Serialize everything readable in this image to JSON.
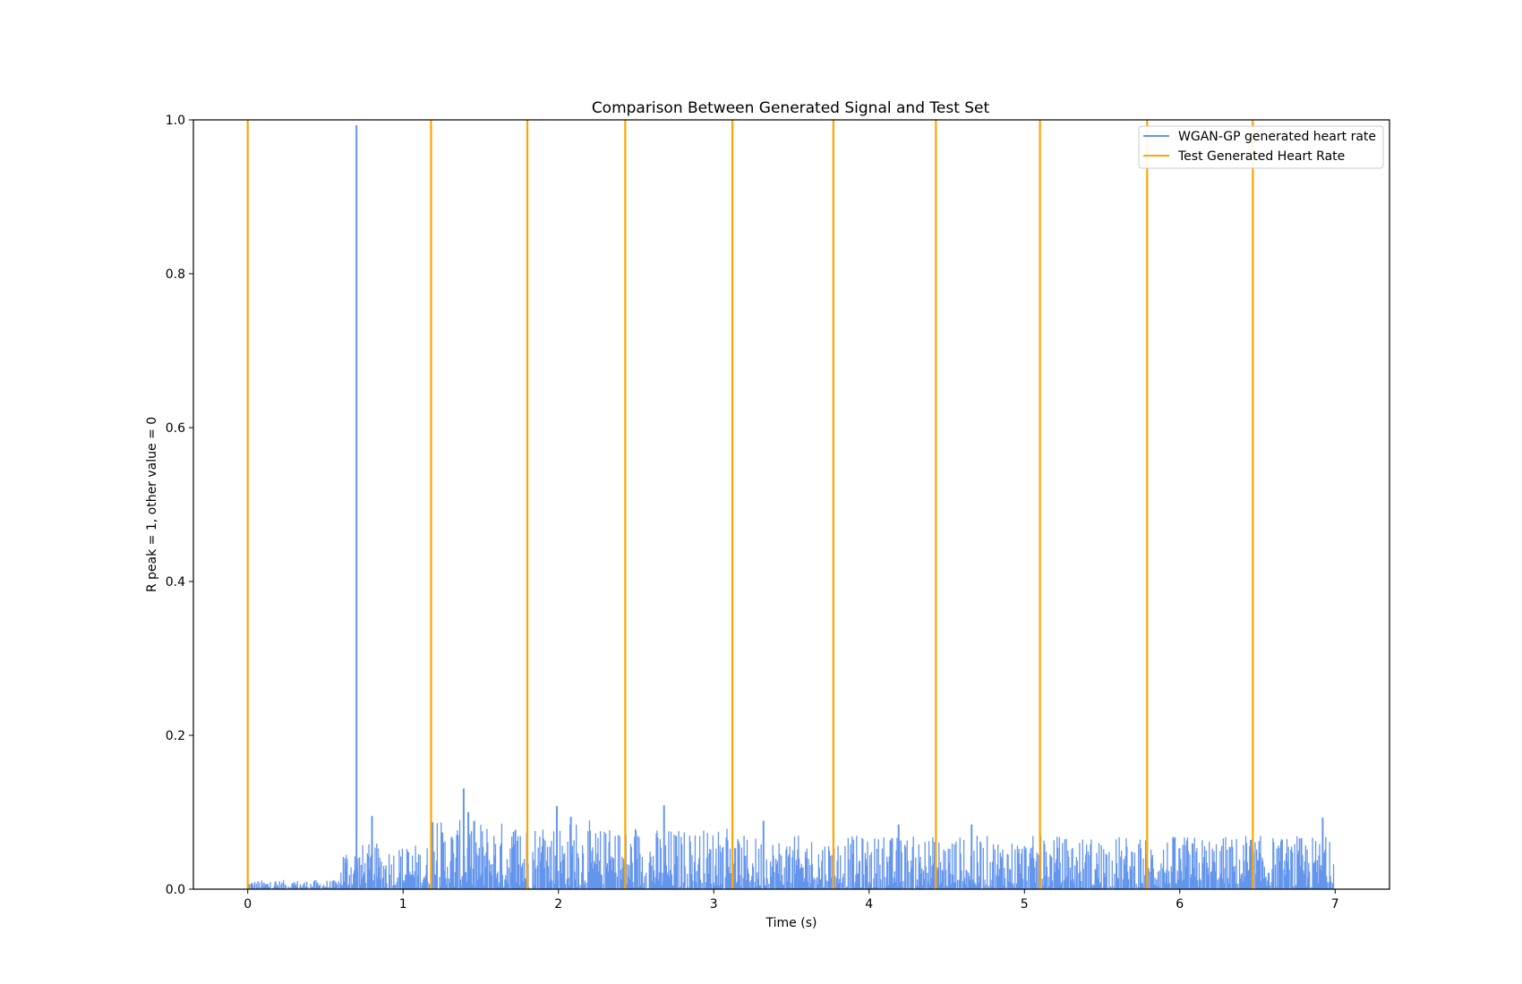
{
  "chart_data": {
    "type": "line",
    "title": "Comparison Between Generated Signal and Test Set",
    "xlabel": "Time (s)",
    "ylabel": "R peak = 1, other value = 0",
    "xlim": [
      -0.35,
      7.35
    ],
    "ylim": [
      0.0,
      1.0
    ],
    "xticks": [
      0,
      1,
      2,
      3,
      4,
      5,
      6,
      7
    ],
    "xtick_labels": [
      "0",
      "1",
      "2",
      "3",
      "4",
      "5",
      "6",
      "7"
    ],
    "yticks": [
      0.0,
      0.2,
      0.4,
      0.6,
      0.8,
      1.0
    ],
    "ytick_labels": [
      "0.0",
      "0.2",
      "0.4",
      "0.6",
      "0.8",
      "1.0"
    ],
    "grid": false,
    "legend_position": "top-right",
    "series": [
      {
        "name": "WGAN-GP generated heart rate",
        "color": "#6495ed",
        "style": "dense noisy signal",
        "x_range": [
          0,
          7
        ],
        "sample_spacing": 0.005,
        "baseline_segments": [
          {
            "x": [
              0.0,
              0.6
            ],
            "typical_max": 0.012
          },
          {
            "x": [
              0.6,
              1.2
            ],
            "typical_max": 0.06
          },
          {
            "x": [
              1.2,
              2.2
            ],
            "typical_max": 0.09
          },
          {
            "x": [
              2.2,
              3.1
            ],
            "typical_max": 0.08
          },
          {
            "x": [
              3.1,
              7.0
            ],
            "typical_max": 0.07
          }
        ],
        "peaks": [
          {
            "x": 0.7,
            "y": 0.993
          },
          {
            "x": 0.8,
            "y": 0.095
          },
          {
            "x": 1.19,
            "y": 0.087
          },
          {
            "x": 1.39,
            "y": 0.131
          },
          {
            "x": 1.42,
            "y": 0.1
          },
          {
            "x": 1.99,
            "y": 0.108
          },
          {
            "x": 2.08,
            "y": 0.094
          },
          {
            "x": 2.68,
            "y": 0.109
          },
          {
            "x": 3.32,
            "y": 0.089
          },
          {
            "x": 4.19,
            "y": 0.084
          },
          {
            "x": 4.66,
            "y": 0.084
          },
          {
            "x": 6.92,
            "y": 0.093
          }
        ]
      },
      {
        "name": "Test Generated Heart Rate",
        "color": "#ffa500",
        "style": "vertical impulses",
        "impulse_x": [
          0.0,
          1.18,
          1.8,
          2.43,
          3.12,
          3.77,
          4.43,
          5.1,
          5.79,
          6.47
        ],
        "impulse_y": 1.0
      }
    ]
  }
}
